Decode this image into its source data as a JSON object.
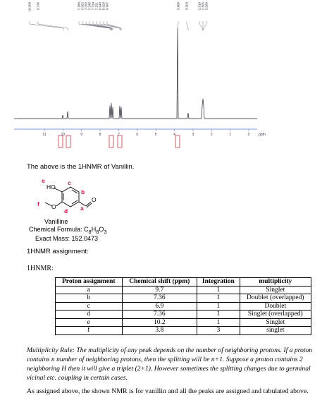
{
  "spectrum": {
    "peak_labels": [
      "10.200",
      "9.736",
      "7.380",
      "7.362",
      "7.358",
      "7.345",
      "7.334",
      "7.321",
      "6.949",
      "6.929",
      "6.907",
      "3.808",
      "3.203",
      "2.510",
      "2.505",
      "2.500"
    ],
    "axis_ticks": [
      "11",
      "10",
      "9",
      "8",
      "7",
      "6",
      "5",
      "4",
      "3",
      "2",
      "1",
      "0"
    ],
    "axis_unit": "ppm"
  },
  "caption": "The above is the 1HNMR of Vanillin.",
  "structure": {
    "labels": {
      "e": "e",
      "c": "c",
      "b": "b",
      "f": "f",
      "d": "d",
      "a": "a"
    },
    "atoms": {
      "hydroxyl": "HO",
      "ether": "O",
      "carbonyl": "O"
    },
    "name": "Vanilline",
    "formula": [
      "Chemical Formula: C",
      "8",
      "H",
      "8",
      "O",
      "3"
    ],
    "mass": "Exact Mass: 152.0473"
  },
  "assignment_heading": "1HNMR assignment:",
  "table_heading": "1HNMR:",
  "table": {
    "header": [
      "Proton assignment",
      "Chemical shift (ppm)",
      "Integration",
      "multiplicity"
    ],
    "rows": [
      [
        "a",
        "9.7",
        "1",
        "Singlet"
      ],
      [
        "b",
        "7.36",
        "1",
        "Doublet (overlapped)"
      ],
      [
        "c",
        "6.9",
        "1",
        "Doublet"
      ],
      [
        "d",
        "7.36",
        "1",
        "Singlet (overlapped)"
      ],
      [
        "e",
        "10.2",
        "1",
        "Singlet"
      ],
      [
        "f",
        "3.8",
        "3",
        "singlet"
      ]
    ]
  },
  "rule_text": "Multiplicity Rule: The multiplicity of any peak depends on the number of neighboring protons. If a proton contains n number of neighboring protons, then the splitting will be n+1. Suppose a proton contains 2 neighboring H then it will give a triplet (2+1). However sometimes the splitting changes due to germinal vicinal etc. coupling in certain cases.",
  "conclusion": "As assigned above, the shown NMR is for vanillin and all the peaks are assigned and tabulated above."
}
